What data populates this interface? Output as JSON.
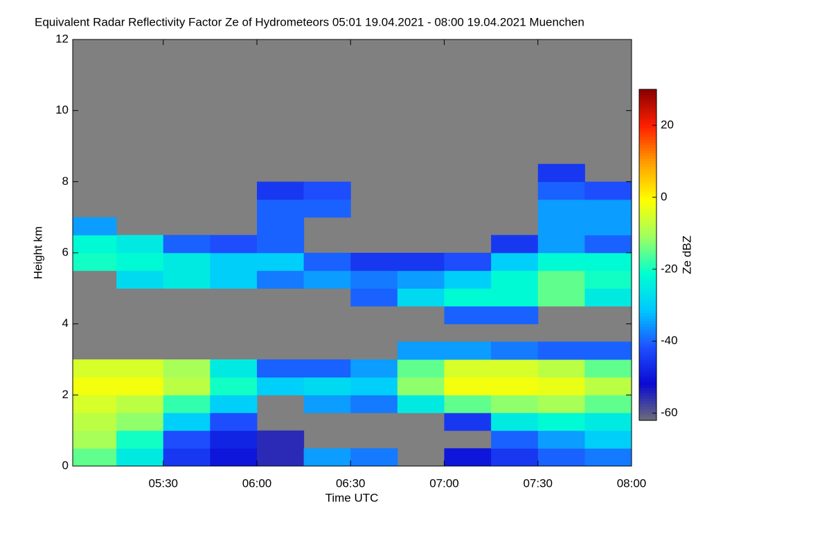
{
  "chart_data": {
    "type": "heatmap",
    "title": "Equivalent Radar Reflectivity Factor Ze of Hydrometeors   05:01 19.04.2021 - 08:00 19.04.2021 Muenchen",
    "x_label": "Time UTC",
    "y_label": "Height km",
    "colorbar_label": "Ze dBZ",
    "xlim": [
      5.0167,
      8.0
    ],
    "xticks": [
      {
        "value": 5.5,
        "label": "05:30"
      },
      {
        "value": 6.0,
        "label": "06:00"
      },
      {
        "value": 6.5,
        "label": "06:30"
      },
      {
        "value": 7.0,
        "label": "07:00"
      },
      {
        "value": 7.5,
        "label": "07:30"
      },
      {
        "value": 8.0,
        "label": "08:00"
      }
    ],
    "ylim": [
      0,
      12
    ],
    "yticks": [
      0,
      2,
      4,
      6,
      8,
      10,
      12
    ],
    "zlim": [
      -62,
      30
    ],
    "zticks": [
      -60,
      -40,
      -20,
      0,
      20
    ],
    "missing_color": "#808080",
    "colormap": [
      "#6e6e78",
      "#0a0ad2",
      "#1e50ff",
      "#00c8ff",
      "#00ffd0",
      "#a0ff60",
      "#ffff00",
      "#ffa000",
      "#ff2000",
      "#8a0000"
    ],
    "x": [
      5.125,
      5.375,
      5.625,
      5.875,
      6.125,
      6.375,
      6.625,
      6.875,
      7.125,
      7.375,
      7.625,
      7.875
    ],
    "y": [
      0.25,
      0.75,
      1.25,
      1.75,
      2.25,
      2.75,
      3.25,
      3.75,
      4.25,
      4.75,
      5.25,
      5.75,
      6.25,
      6.75,
      7.25,
      7.75,
      8.25
    ],
    "z": [
      [
        -15,
        -25,
        -45,
        -50,
        -55,
        -35,
        -38,
        null,
        -50,
        -45,
        -40,
        -38
      ],
      [
        -10,
        -20,
        -42,
        -48,
        -55,
        null,
        null,
        null,
        null,
        -40,
        -35,
        -30
      ],
      [
        -8,
        -12,
        -30,
        -42,
        null,
        null,
        null,
        null,
        -45,
        -25,
        -22,
        -25
      ],
      [
        -5,
        -8,
        -18,
        -30,
        null,
        -35,
        -38,
        -25,
        -15,
        -12,
        -10,
        -15
      ],
      [
        -2,
        -2,
        -8,
        -20,
        -30,
        -28,
        -30,
        -12,
        -2,
        -2,
        -3,
        -8
      ],
      [
        -5,
        -5,
        -10,
        -25,
        -40,
        -40,
        -35,
        -15,
        -5,
        -5,
        -8,
        -15
      ],
      [
        null,
        null,
        null,
        null,
        null,
        null,
        null,
        -35,
        -35,
        -38,
        -40,
        -40
      ],
      [
        null,
        null,
        null,
        null,
        null,
        null,
        null,
        null,
        null,
        null,
        null,
        null
      ],
      [
        null,
        null,
        null,
        null,
        null,
        null,
        null,
        null,
        -40,
        -40,
        null,
        null
      ],
      [
        null,
        null,
        null,
        null,
        null,
        null,
        -40,
        -28,
        -22,
        -22,
        -15,
        -25
      ],
      [
        null,
        -28,
        -25,
        -30,
        -38,
        -35,
        -38,
        -35,
        -30,
        -22,
        -15,
        -20
      ],
      [
        -20,
        -22,
        -25,
        -30,
        -30,
        -40,
        -45,
        -45,
        -42,
        -30,
        -22,
        -22
      ],
      [
        -22,
        -25,
        -40,
        -42,
        -40,
        null,
        null,
        null,
        null,
        -45,
        -35,
        -40
      ],
      [
        -35,
        null,
        null,
        null,
        -40,
        null,
        null,
        null,
        null,
        null,
        -35,
        -35
      ],
      [
        null,
        null,
        null,
        null,
        -40,
        -40,
        null,
        null,
        null,
        null,
        -35,
        -35
      ],
      [
        null,
        null,
        null,
        null,
        -45,
        -42,
        null,
        null,
        null,
        null,
        -40,
        -42
      ],
      [
        null,
        null,
        null,
        null,
        null,
        null,
        null,
        null,
        null,
        null,
        -45,
        null
      ]
    ]
  }
}
